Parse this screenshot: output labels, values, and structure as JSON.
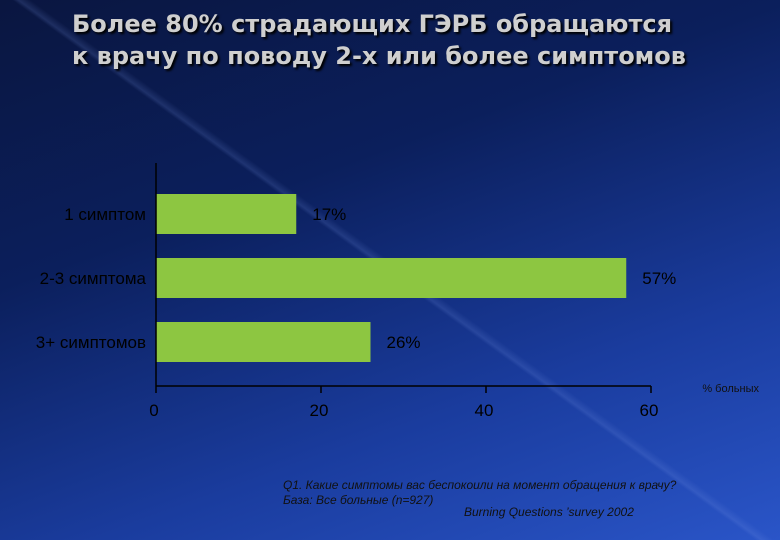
{
  "title": {
    "line1": "Более 80% страдающих ГЭРБ обращаются",
    "line2": "к врачу по поводу 2-х или более симптомов"
  },
  "chart_data": {
    "type": "bar",
    "orientation": "horizontal",
    "categories": [
      "1 симптом",
      "2-3 симптома",
      "3+ симптомов"
    ],
    "values": [
      17,
      57,
      26
    ],
    "value_labels": [
      "17%",
      "57%",
      "26%"
    ],
    "xticks": [
      "0",
      "20",
      "40",
      "60"
    ],
    "xlabel": "% больных",
    "xlim": [
      0,
      60
    ],
    "bar_color": "#8dc641",
    "grid": false
  },
  "footnote": {
    "question": "Q1. Какие симптомы вас беспокоили на момент обращения к врачу?",
    "base": "База: Все больные (n=927)",
    "source": "Burning Questions ’survey 2002"
  }
}
